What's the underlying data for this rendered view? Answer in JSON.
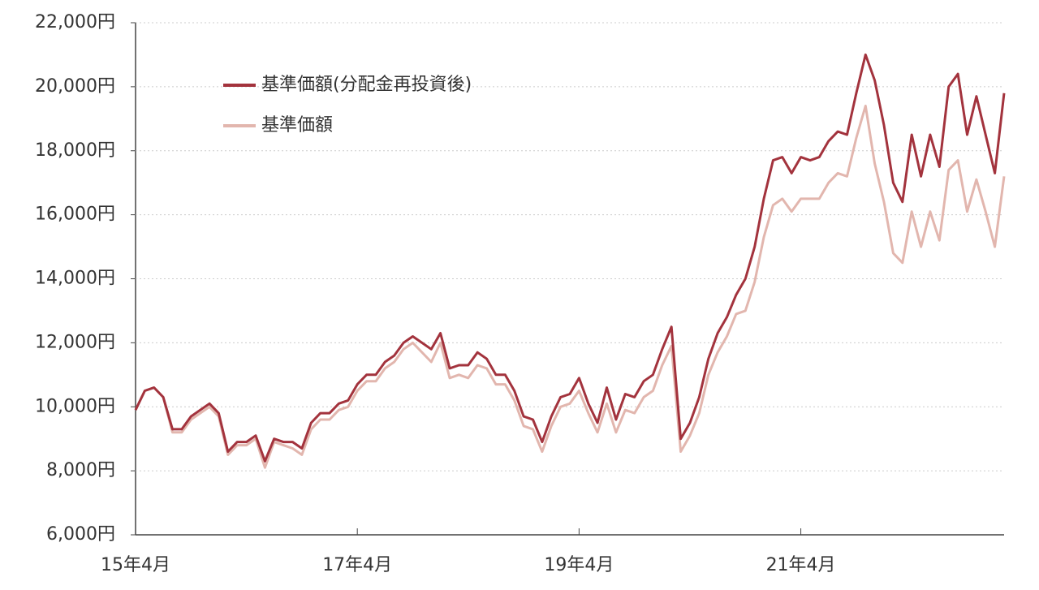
{
  "chart_data": {
    "type": "line",
    "categories": [
      "15年4月",
      null,
      null,
      null,
      null,
      null,
      null,
      null,
      null,
      null,
      null,
      null,
      null,
      null,
      null,
      null,
      null,
      null,
      null,
      null,
      null,
      null,
      null,
      null,
      "17年4月",
      null,
      null,
      null,
      null,
      null,
      null,
      null,
      null,
      null,
      null,
      null,
      null,
      null,
      null,
      null,
      null,
      null,
      null,
      null,
      null,
      null,
      null,
      null,
      "19年4月",
      null,
      null,
      null,
      null,
      null,
      null,
      null,
      null,
      null,
      null,
      null,
      null,
      null,
      null,
      null,
      null,
      null,
      null,
      null,
      null,
      null,
      null,
      null,
      "21年4月",
      null,
      null,
      null,
      null,
      null,
      null,
      null,
      null,
      null,
      null,
      null,
      null,
      null,
      null,
      null,
      null,
      null,
      null,
      null,
      null,
      null,
      null
    ],
    "series": [
      {
        "name": "基準価額(分配金再投資後)",
        "color": "#a3333d",
        "values": [
          9900,
          10500,
          10600,
          10300,
          9300,
          9300,
          9700,
          9900,
          10100,
          9800,
          8600,
          8900,
          8900,
          9100,
          8300,
          9000,
          8900,
          8900,
          8700,
          9500,
          9800,
          9800,
          10100,
          10200,
          10700,
          11000,
          11000,
          11400,
          11600,
          12000,
          12200,
          12000,
          11800,
          12300,
          11200,
          11300,
          11300,
          11700,
          11500,
          11000,
          11000,
          10500,
          9700,
          9600,
          8900,
          9700,
          10300,
          10400,
          10900,
          10100,
          9500,
          10600,
          9600,
          10400,
          10300,
          10800,
          11000,
          11800,
          12500,
          9000,
          9500,
          10300,
          11500,
          12300,
          12800,
          13500,
          14000,
          15000,
          16500,
          17700,
          17800,
          17300,
          17800,
          17700,
          17800,
          18300,
          18600,
          18500,
          19800,
          21000,
          20200,
          18800,
          17000,
          16400,
          18500,
          17200,
          18500,
          17500,
          20000,
          20400,
          18500,
          19700,
          18500,
          17300,
          19800
        ]
      },
      {
        "name": "基準価額",
        "color": "#e2b6ae",
        "values": [
          9900,
          10500,
          10600,
          10300,
          9200,
          9200,
          9600,
          9800,
          10000,
          9700,
          8500,
          8800,
          8800,
          9000,
          8100,
          8900,
          8800,
          8700,
          8500,
          9300,
          9600,
          9600,
          9900,
          10000,
          10500,
          10800,
          10800,
          11200,
          11400,
          11800,
          12000,
          11700,
          11400,
          12000,
          10900,
          11000,
          10900,
          11300,
          11200,
          10700,
          10700,
          10200,
          9400,
          9300,
          8600,
          9400,
          10000,
          10100,
          10500,
          9800,
          9200,
          10100,
          9200,
          9900,
          9800,
          10300,
          10500,
          11300,
          11900,
          8600,
          9100,
          9800,
          11000,
          11700,
          12200,
          12900,
          13000,
          13900,
          15300,
          16300,
          16500,
          16100,
          16500,
          16500,
          16500,
          17000,
          17300,
          17200,
          18400,
          19400,
          17600,
          16400,
          14800,
          14500,
          16100,
          15000,
          16100,
          15200,
          17400,
          17700,
          16100,
          17100,
          16100,
          15000,
          17200
        ]
      }
    ],
    "ylim": [
      6000,
      22000
    ],
    "yticks": [
      {
        "value": 6000,
        "label": "6,000円"
      },
      {
        "value": 8000,
        "label": "8,000円"
      },
      {
        "value": 10000,
        "label": "10,000円"
      },
      {
        "value": 12000,
        "label": "12,000円"
      },
      {
        "value": 14000,
        "label": "14,000円"
      },
      {
        "value": 16000,
        "label": "16,000円"
      },
      {
        "value": 18000,
        "label": "18,000円"
      },
      {
        "value": 20000,
        "label": "20,000円"
      },
      {
        "value": 22000,
        "label": "22,000円"
      }
    ],
    "grid": true,
    "legend": "upper-left"
  }
}
